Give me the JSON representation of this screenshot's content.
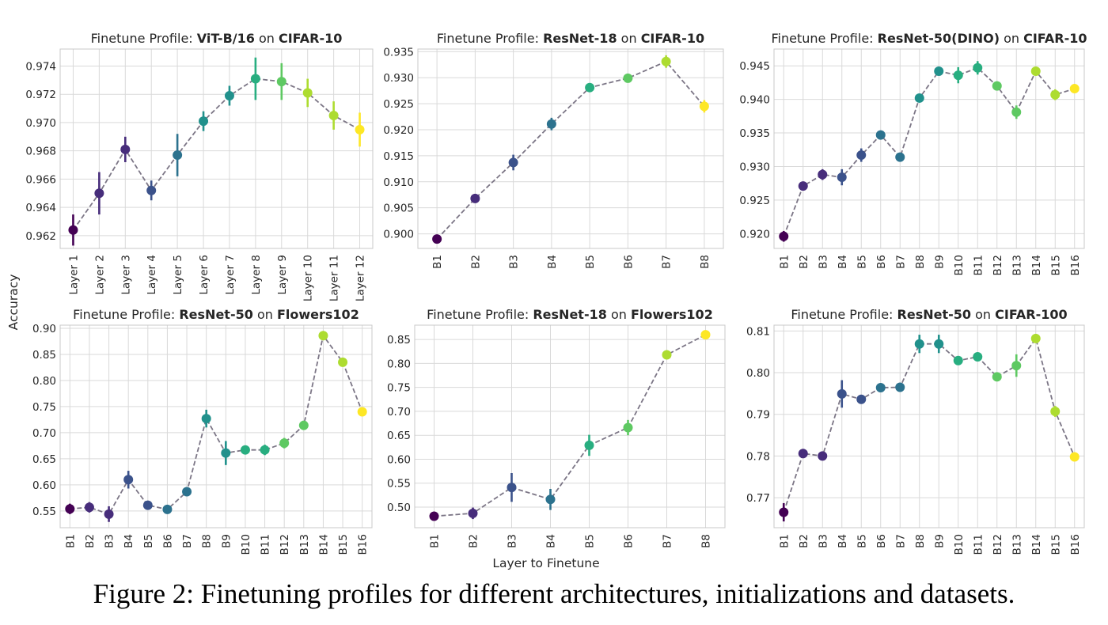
{
  "figure": {
    "ylabel": "Accuracy",
    "xlabel": "Layer to Finetune",
    "caption": "Figure 2: Finetuning profiles for different architectures, initializations and datasets."
  },
  "chart_data": [
    {
      "type": "scatter",
      "title_prefix": "Finetune Profile: ",
      "model": "ViT-B/16",
      "title_mid": " on ",
      "dataset": "CIFAR-10",
      "x": [
        "Layer 1",
        "Layer 2",
        "Layer 3",
        "Layer 4",
        "Layer 5",
        "Layer 6",
        "Layer 7",
        "Layer 8",
        "Layer 9",
        "Layer 10",
        "Layer 11",
        "Layer 12"
      ],
      "values": [
        0.9624,
        0.965,
        0.9681,
        0.9652,
        0.9677,
        0.9701,
        0.9719,
        0.9731,
        0.9729,
        0.9721,
        0.9705,
        0.9695
      ],
      "err": [
        0.0011,
        0.0015,
        0.0009,
        0.0007,
        0.0015,
        0.0007,
        0.0007,
        0.0015,
        0.0013,
        0.001,
        0.001,
        0.0012
      ],
      "yticks": [
        0.962,
        0.964,
        0.966,
        0.968,
        0.97,
        0.972,
        0.974
      ],
      "ylim": [
        0.9611,
        0.9752
      ],
      "tick_decimals": 3,
      "grid": true
    },
    {
      "type": "scatter",
      "title_prefix": "Finetune Profile: ",
      "model": "ResNet-18",
      "title_mid": " on ",
      "dataset": "CIFAR-10",
      "x": [
        "B1",
        "B2",
        "B3",
        "B4",
        "B5",
        "B6",
        "B7",
        "B8"
      ],
      "values": [
        0.899,
        0.9068,
        0.9137,
        0.9211,
        0.9281,
        0.9299,
        0.9331,
        0.9245
      ],
      "err": [
        0.0005,
        0.0005,
        0.0015,
        0.0012,
        0.0005,
        0.0005,
        0.0012,
        0.0012
      ],
      "yticks": [
        0.9,
        0.905,
        0.91,
        0.915,
        0.92,
        0.925,
        0.93,
        0.935
      ],
      "ylim": [
        0.8972,
        0.9355
      ],
      "tick_decimals": 3,
      "grid": true
    },
    {
      "type": "scatter",
      "title_prefix": "Finetune Profile: ",
      "model": "ResNet-50(DINO)",
      "title_mid": " on ",
      "dataset": "CIFAR-10",
      "x": [
        "B1",
        "B2",
        "B3",
        "B4",
        "B5",
        "B6",
        "B7",
        "B8",
        "B9",
        "B10",
        "B11",
        "B12",
        "B13",
        "B14",
        "B15",
        "B16"
      ],
      "values": [
        0.9196,
        0.9271,
        0.9288,
        0.9284,
        0.9317,
        0.9347,
        0.9314,
        0.9402,
        0.9442,
        0.9436,
        0.9447,
        0.942,
        0.9381,
        0.9442,
        0.9407,
        0.9416
      ],
      "err": [
        0.0008,
        0.0005,
        0.0008,
        0.0012,
        0.001,
        0.0005,
        0.0005,
        0.0005,
        0.0005,
        0.0012,
        0.001,
        0.0005,
        0.001,
        0.0005,
        0.0008,
        0.0005
      ],
      "yticks": [
        0.92,
        0.925,
        0.93,
        0.935,
        0.94,
        0.945
      ],
      "ylim": [
        0.9178,
        0.9475
      ],
      "tick_decimals": 3,
      "grid": true
    },
    {
      "type": "scatter",
      "title_prefix": "Finetune Profile: ",
      "model": "ResNet-50",
      "title_mid": " on ",
      "dataset": "Flowers102",
      "x": [
        "B1",
        "B2",
        "B3",
        "B4",
        "B5",
        "B6",
        "B7",
        "B8",
        "B9",
        "B10",
        "B11",
        "B12",
        "B13",
        "B14",
        "B15",
        "B16"
      ],
      "values": [
        0.554,
        0.557,
        0.544,
        0.61,
        0.561,
        0.553,
        0.587,
        0.727,
        0.661,
        0.667,
        0.667,
        0.68,
        0.714,
        0.886,
        0.835,
        0.74
      ],
      "err": [
        0.01,
        0.01,
        0.015,
        0.017,
        0.005,
        0.008,
        0.008,
        0.017,
        0.023,
        0.008,
        0.01,
        0.01,
        0.005,
        0.005,
        0.005,
        0.005
      ],
      "yticks": [
        0.55,
        0.6,
        0.65,
        0.7,
        0.75,
        0.8,
        0.85,
        0.9
      ],
      "ylim": [
        0.518,
        0.906
      ],
      "tick_decimals": 2,
      "grid": true
    },
    {
      "type": "scatter",
      "title_prefix": "Finetune Profile: ",
      "model": "ResNet-18",
      "title_mid": " on ",
      "dataset": "Flowers102",
      "x": [
        "B1",
        "B2",
        "B3",
        "B4",
        "B5",
        "B6",
        "B7",
        "B8"
      ],
      "values": [
        0.481,
        0.487,
        0.541,
        0.516,
        0.629,
        0.666,
        0.818,
        0.86
      ],
      "err": [
        0.005,
        0.012,
        0.03,
        0.022,
        0.022,
        0.016,
        0.005,
        0.005
      ],
      "yticks": [
        0.5,
        0.55,
        0.6,
        0.65,
        0.7,
        0.75,
        0.8,
        0.85
      ],
      "ylim": [
        0.457,
        0.88
      ],
      "tick_decimals": 2,
      "grid": true
    },
    {
      "type": "scatter",
      "title_prefix": "Finetune Profile: ",
      "model": "ResNet-50",
      "title_mid": " on ",
      "dataset": "CIFAR-100",
      "x": [
        "B1",
        "B2",
        "B3",
        "B4",
        "B5",
        "B6",
        "B7",
        "B8",
        "B9",
        "B10",
        "B11",
        "B12",
        "B13",
        "B14",
        "B15",
        "B16"
      ],
      "values": [
        0.7665,
        0.7806,
        0.78,
        0.7949,
        0.7936,
        0.7964,
        0.7965,
        0.8069,
        0.8069,
        0.8029,
        0.8038,
        0.799,
        0.8017,
        0.8082,
        0.7907,
        0.7798
      ],
      "err": [
        0.0022,
        0.0005,
        0.0005,
        0.0033,
        0.001,
        0.0005,
        0.001,
        0.0022,
        0.0022,
        0.0005,
        0.0005,
        0.0005,
        0.0027,
        0.0005,
        0.0013,
        0.001
      ],
      "yticks": [
        0.77,
        0.78,
        0.79,
        0.8,
        0.81
      ],
      "ylim": [
        0.7628,
        0.8114
      ],
      "tick_decimals": 2,
      "grid": true
    }
  ],
  "colors": {
    "palette": [
      "#440154",
      "#472d7b",
      "#3b528b",
      "#2c728e",
      "#21918c",
      "#28ae80",
      "#5ec962",
      "#addc30",
      "#fde725"
    ],
    "connector": "#7c7686",
    "grid": "#d9d9d9"
  }
}
